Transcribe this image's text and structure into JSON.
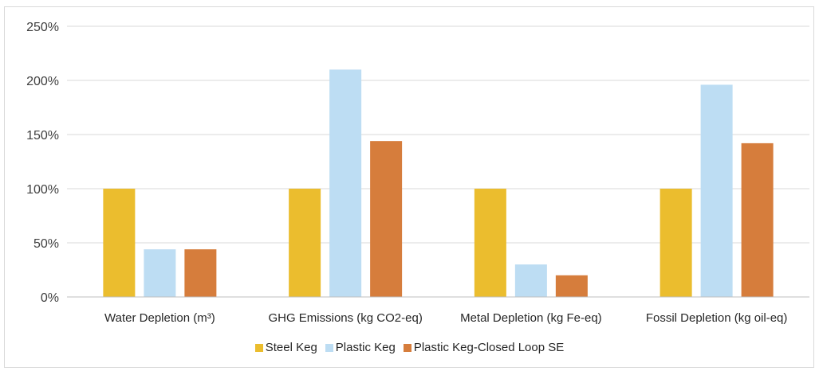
{
  "chart_data": {
    "type": "bar",
    "title": "",
    "xlabel": "",
    "ylabel": "",
    "categories": [
      "Water Depletion (m³)",
      "GHG Emissions (kg CO2-eq)",
      "Metal Depletion (kg Fe-eq)",
      "Fossil Depletion (kg oil-eq)"
    ],
    "series": [
      {
        "name": "Steel Keg",
        "color": "#EBBD2E",
        "values": [
          100,
          100,
          100,
          100
        ]
      },
      {
        "name": "Plastic Keg",
        "color": "#BDDDF3",
        "values": [
          44,
          210,
          30,
          196
        ]
      },
      {
        "name": "Plastic Keg-Closed Loop SE",
        "color": "#D67D3C",
        "values": [
          44,
          144,
          20,
          142
        ]
      }
    ],
    "ylim": [
      0,
      250
    ],
    "yticks": [
      0,
      50,
      100,
      150,
      200,
      250
    ],
    "ytick_labels": [
      "0%",
      "50%",
      "100%",
      "150%",
      "200%",
      "250%"
    ],
    "grid": true,
    "legend_position": "bottom"
  }
}
